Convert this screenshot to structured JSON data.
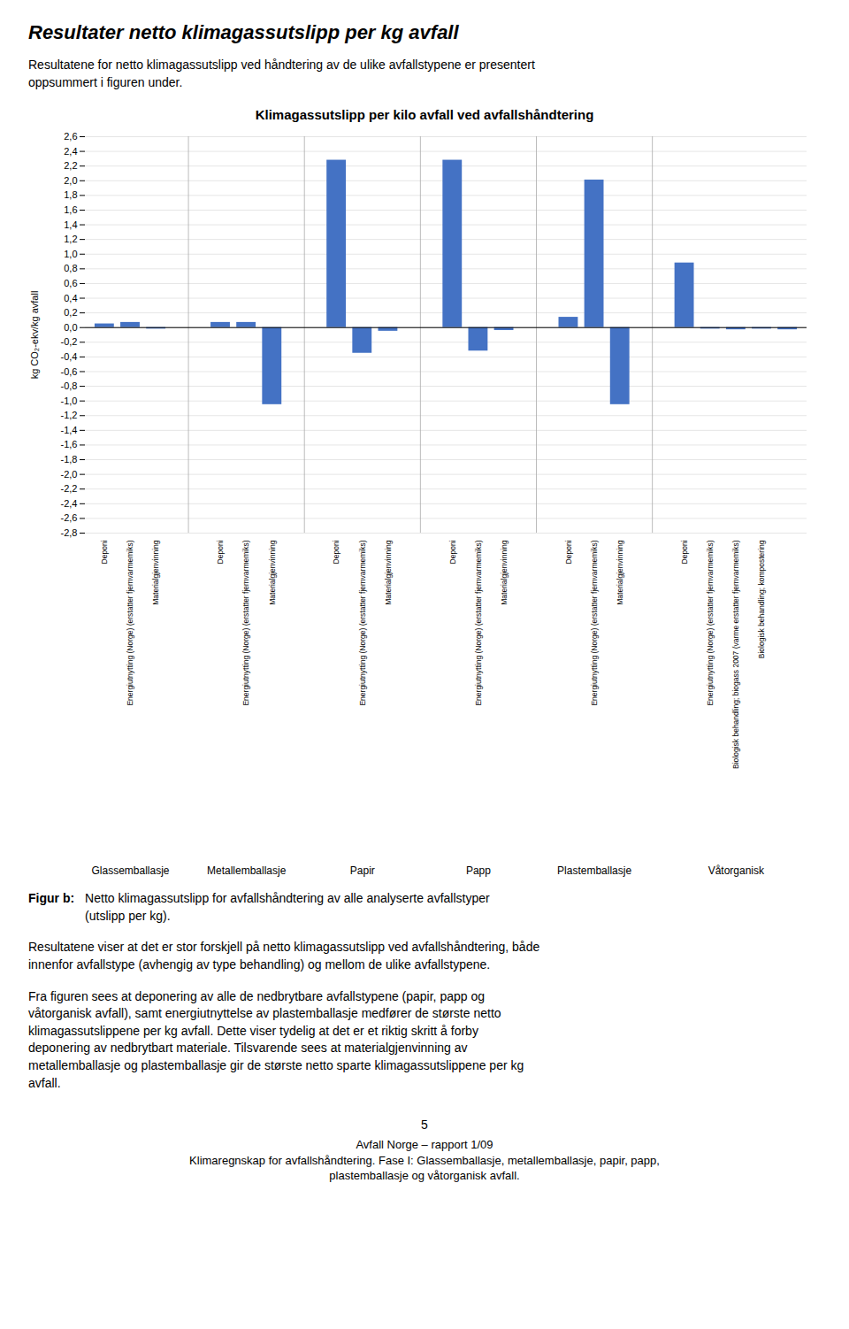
{
  "page_title": "Resultater netto klimagassutslipp per kg avfall",
  "intro": "Resultatene for netto klimagassutslipp ved håndtering av de ulike avfallstypene er presentert\noppsummert i figuren under.",
  "caption_label": "Figur b:",
  "caption": "Netto klimagassutslipp for avfallshåndtering av alle analyserte avfallstyper\n(utslipp per kg).",
  "paragraphs": [
    "Resultatene viser at det er stor forskjell på netto klimagassutslipp ved avfallshåndtering, både\ninnenfor avfallstype (avhengig av type behandling) og mellom de ulike avfallstypene.",
    "Fra figuren sees at deponering av alle de nedbrytbare avfallstypene (papir, papp og\nvåtorganisk avfall), samt energiutnyttelse av plastemballasje medfører de største netto\nklimagassutslippene per kg avfall. Dette viser tydelig at det er et riktig skritt å forby\ndeponering av nedbrytbart materiale. Tilsvarende sees at materialgjenvinning av\nmetallemballasje og plastemballasje gir de største netto sparte klimagassutslippene per kg\navfall."
  ],
  "footer": [
    "5",
    "Avfall Norge – rapport 1/09",
    "Klimaregnskap for avfallshåndtering. Fase I: Glassemballasje, metallemballasje, papir, papp,",
    "plastemballasje og våtorganisk avfall."
  ],
  "chart_data": {
    "type": "bar",
    "title": "Klimagassutslipp per kilo avfall ved avfallshåndtering",
    "ylabel": "kg CO₂-ekv/kg avfall",
    "categories": [
      "Deponi",
      "Energiutnytting (Norge) (erstatter fjernvarmemiks)",
      "Materialgjenvinning",
      "Deponi",
      "Energiutnytting (Norge) (erstatter fjernvarmemiks)",
      "Materialgjenvinning",
      "Deponi",
      "Energiutnytting (Norge) (erstatter fjernvarmemiks)",
      "Materialgjenvinning",
      "Deponi",
      "Energiutnytting (Norge) (erstatter fjernvarmemiks)",
      "Materialgjenvinning",
      "Deponi",
      "Energiutnytting (Norge) (erstatter fjernvarmemiks)",
      "Materialgjenvinning",
      "Deponi",
      "Energiutnytting (Norge) (erstatter fjernvarmemiks)",
      "Biologisk behandling; biogass 2007 (varme erstatter fjernvarmemiks)",
      "Biologisk behandling; kompostering",
      null
    ],
    "values": [
      0.05,
      0.07,
      -0.02,
      0.07,
      0.07,
      -1.05,
      2.28,
      -0.35,
      -0.05,
      2.28,
      -0.32,
      -0.04,
      0.14,
      2.01,
      -1.05,
      0.88,
      -0.02,
      -0.03,
      -0.02,
      -0.03
    ],
    "groups": [
      {
        "name": "Glassemballasje",
        "count": 3
      },
      {
        "name": "Metallemballasje",
        "count": 3
      },
      {
        "name": "Papir",
        "count": 3
      },
      {
        "name": "Papp",
        "count": 3
      },
      {
        "name": "Plastemballasje",
        "count": 3
      },
      {
        "name": "Våtorganisk",
        "count": 5
      }
    ],
    "color": "#4472C4",
    "ylim": [
      -2.8,
      2.6
    ],
    "yticks": [
      {
        "value": -2.8,
        "label": "-2,8"
      },
      {
        "value": -2.6,
        "label": "-2,6"
      },
      {
        "value": -2.4,
        "label": "-2,4"
      },
      {
        "value": -2.2,
        "label": "-2,2"
      },
      {
        "value": -2.0,
        "label": "-2,0"
      },
      {
        "value": -1.8,
        "label": "-1,8"
      },
      {
        "value": -1.6,
        "label": "-1,6"
      },
      {
        "value": -1.4,
        "label": "-1,4"
      },
      {
        "value": -1.2,
        "label": "-1,2"
      },
      {
        "value": -1.0,
        "label": "-1,0"
      },
      {
        "value": -0.8,
        "label": "-0,8"
      },
      {
        "value": -0.6,
        "label": "-0,6"
      },
      {
        "value": -0.4,
        "label": "-0,4"
      },
      {
        "value": -0.2,
        "label": "-0,2"
      },
      {
        "value": 0,
        "label": "0,0"
      },
      {
        "value": 0.2,
        "label": "0,2"
      },
      {
        "value": 0.4,
        "label": "0,4"
      },
      {
        "value": 0.6,
        "label": "0,6"
      },
      {
        "value": 0.8,
        "label": "0,8"
      },
      {
        "value": 1.0,
        "label": "1,0"
      },
      {
        "value": 1.2,
        "label": "1,2"
      },
      {
        "value": 1.4,
        "label": "1,4"
      },
      {
        "value": 1.6,
        "label": "1,6"
      },
      {
        "value": 1.8,
        "label": "1,8"
      },
      {
        "value": 2.0,
        "label": "2,0"
      },
      {
        "value": 2.2,
        "label": "2,2"
      },
      {
        "value": 2.4,
        "label": "2,4"
      },
      {
        "value": 2.6,
        "label": "2,6"
      }
    ],
    "grid": true
  }
}
